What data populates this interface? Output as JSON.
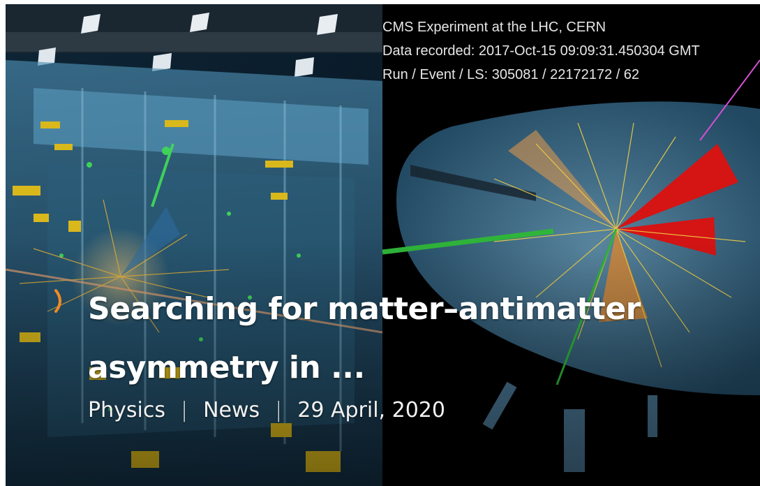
{
  "event_display": {
    "line1": "CMS Experiment at the LHC, CERN",
    "line2": "Data recorded: 2017-Oct-15 09:09:31.450304 GMT",
    "line3": "Run / Event / LS: 305081 / 22172172 / 62"
  },
  "article": {
    "title": "Searching for matter–antimatter asymmetry in ...",
    "category": "Physics",
    "type": "News",
    "date": "29 April, 2020",
    "separator": "|"
  },
  "icons": {
    "chevron": "chevron-right-icon"
  },
  "colors": {
    "accent": "#f08a24",
    "title_text": "#ffffff",
    "background": "#02060c"
  }
}
